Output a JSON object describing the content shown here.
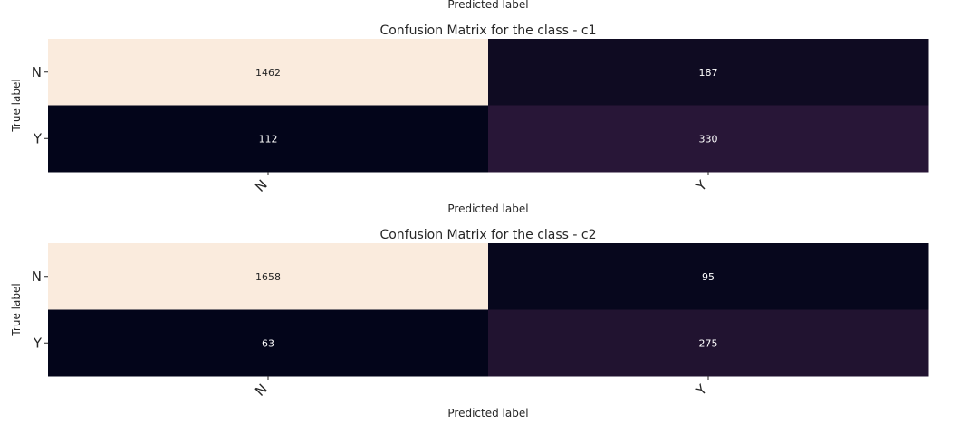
{
  "top_xlabel_cropped": "Predicted label",
  "chart_data": [
    {
      "type": "heatmap",
      "title": "Confusion Matrix for the class - c1",
      "xlabel": "Predicted label",
      "ylabel": "True label",
      "x_categories": [
        "N",
        "Y"
      ],
      "y_categories": [
        "N",
        "Y"
      ],
      "values": [
        [
          1462,
          187
        ],
        [
          112,
          330
        ]
      ],
      "colorbar": false,
      "annot": true
    },
    {
      "type": "heatmap",
      "title": "Confusion Matrix for the class - c2",
      "xlabel": "Predicted label",
      "ylabel": "True label",
      "x_categories": [
        "N",
        "Y"
      ],
      "y_categories": [
        "N",
        "Y"
      ],
      "values": [
        [
          1658,
          95
        ],
        [
          63,
          275
        ]
      ],
      "colorbar": false,
      "annot": true
    }
  ]
}
